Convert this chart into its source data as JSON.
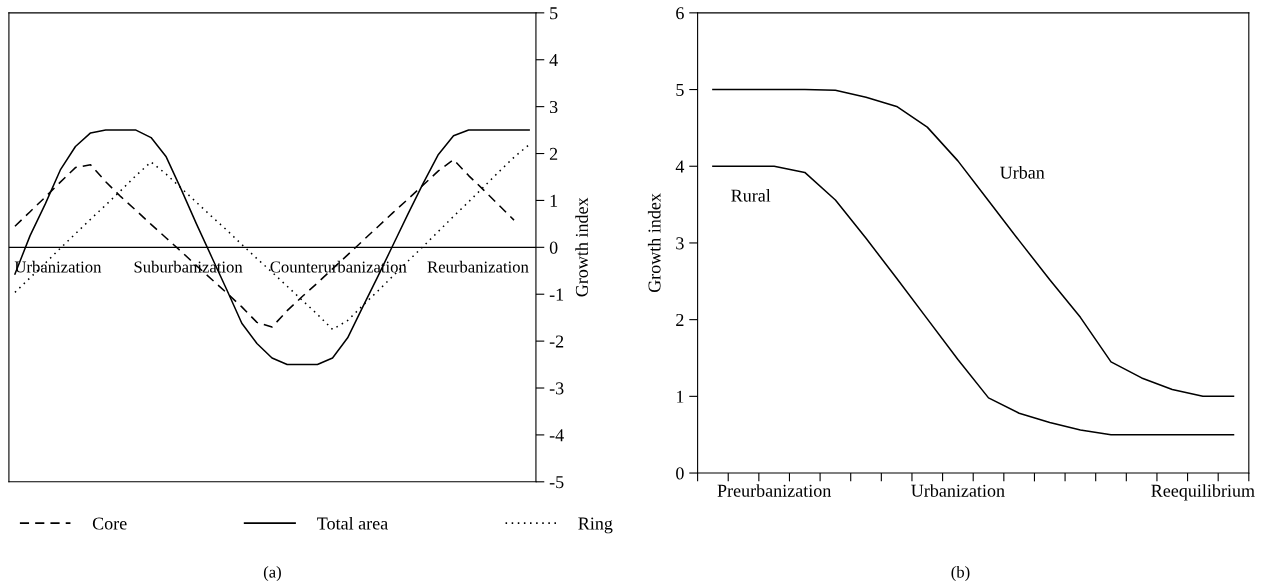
{
  "chart_data": [
    {
      "type": "line",
      "ylabel": "Growth index",
      "categories": [
        null,
        null,
        null,
        null,
        null,
        null,
        null,
        null,
        null,
        null,
        null,
        null,
        null,
        null,
        null,
        null,
        null,
        null,
        null,
        null,
        null,
        null,
        null,
        null,
        null,
        null,
        null,
        null,
        null,
        null,
        null,
        null,
        null,
        null,
        null
      ],
      "series": [
        {
          "name": "Core",
          "color": "#000000",
          "line_style": "dashed",
          "values": [
            0.45,
            0.76,
            1.07,
            1.39,
            1.7,
            1.76,
            1.4,
            1.08,
            0.79,
            0.49,
            0.2,
            -0.09,
            -0.39,
            -0.68,
            -0.97,
            -1.27,
            -1.6,
            -1.7,
            -1.35,
            -1.05,
            -0.76,
            -0.46,
            -0.16,
            0.14,
            0.44,
            0.74,
            1.03,
            1.33,
            1.63,
            1.87,
            1.53,
            1.22,
            0.9,
            0.58,
            null
          ]
        },
        {
          "name": "Total area",
          "color": "#000000",
          "line_style": "solid",
          "values": [
            -0.57,
            0.25,
            0.92,
            1.65,
            2.15,
            2.44,
            2.5,
            2.5,
            2.5,
            2.34,
            1.93,
            1.23,
            0.5,
            -0.2,
            -0.9,
            -1.62,
            -2.05,
            -2.36,
            -2.5,
            -2.5,
            -2.5,
            -2.36,
            -1.93,
            -1.27,
            -0.62,
            0.05,
            0.72,
            1.37,
            1.98,
            2.38,
            2.5,
            2.5,
            2.5,
            2.5,
            2.5
          ]
        },
        {
          "name": "Ring",
          "color": "#000000",
          "line_style": "dotted",
          "values": [
            -0.96,
            -0.65,
            -0.34,
            -0.02,
            0.29,
            0.6,
            0.9,
            1.21,
            1.53,
            1.82,
            1.56,
            1.26,
            0.96,
            0.66,
            0.37,
            0.06,
            -0.24,
            -0.53,
            -0.83,
            -1.13,
            -1.43,
            -1.75,
            -1.56,
            -1.24,
            -0.93,
            -0.61,
            -0.29,
            0.02,
            0.34,
            0.66,
            0.97,
            1.29,
            1.61,
            1.92,
            2.19
          ]
        }
      ],
      "ylim": [
        -5,
        5
      ],
      "yticks": [
        -5,
        -4,
        -3,
        -2,
        -1,
        0,
        1,
        2,
        3,
        4,
        5
      ],
      "tick_labels": "y",
      "grid": false,
      "legend": "bottom",
      "marker": "none",
      "ref_lines": [
        {
          "axis": "y",
          "value": 0,
          "color": "#000000",
          "line_style": "solid"
        }
      ],
      "annotations": [
        "Urbanization",
        "Suburbanization",
        "Counterurbanization",
        "Reurbanization",
        "(a)"
      ]
    },
    {
      "type": "line",
      "ylabel": "Growth index",
      "series": [
        {
          "name": "Urban",
          "color": "#000000",
          "values": [
            5,
            5,
            5,
            5,
            4.99,
            4.9,
            4.78,
            4.51,
            4.07,
            3.55,
            3.03,
            2.52,
            2.03,
            1.45,
            1.24,
            1.09,
            1.0,
            1.0
          ]
        },
        {
          "name": "Rural",
          "color": "#000000",
          "values": [
            4,
            4,
            4,
            3.92,
            3.56,
            3.06,
            2.54,
            2.01,
            1.48,
            0.98,
            0.78,
            0.66,
            0.56,
            0.5,
            0.5,
            0.5,
            0.5,
            0.5
          ]
        }
      ],
      "categories": [
        null,
        null,
        "Preurbanization",
        null,
        null,
        null,
        null,
        null,
        "Urbanization",
        null,
        null,
        null,
        null,
        null,
        null,
        null,
        "Reequilibrium",
        null
      ],
      "ylim": [
        0,
        6
      ],
      "yticks": [
        0,
        1,
        2,
        3,
        4,
        5,
        6
      ],
      "grid": false,
      "legend": false,
      "marker": "none",
      "annotations": [
        "(b)"
      ]
    }
  ]
}
